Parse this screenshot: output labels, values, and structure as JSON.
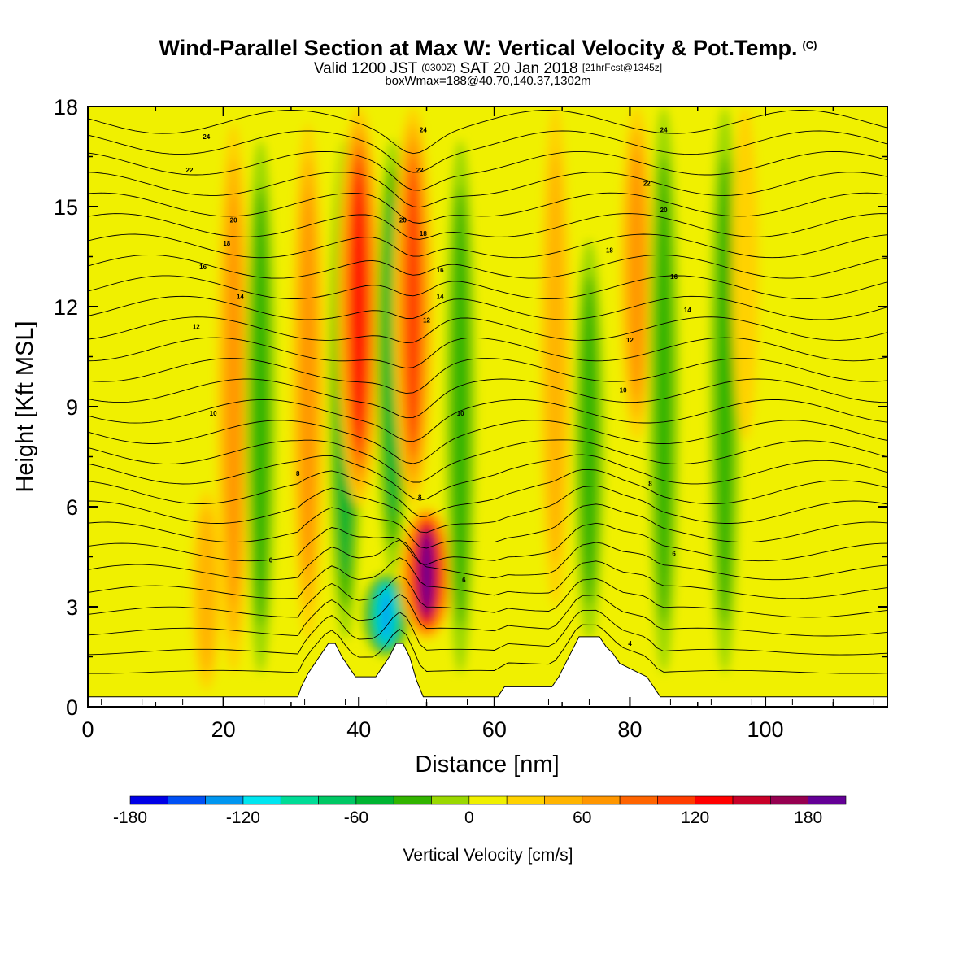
{
  "header": {
    "title": "Wind-Parallel Section at Max W: Vertical Velocity & Pot.Temp.",
    "title_mark": "(C)",
    "subtitle_a": "Valid 1200 JST",
    "subtitle_b": "(0300Z)",
    "subtitle_c": "SAT 20 Jan 2018",
    "subtitle_d": "[21hrFcst@1345z]",
    "subtitle2": "boxWmax=188@40.70,140.37,1302m"
  },
  "chart_data": {
    "type": "heatmap",
    "xlabel": "Distance [nm]",
    "ylabel": "Height [Kft MSL]",
    "xlim": [
      0,
      118
    ],
    "ylim": [
      0,
      18
    ],
    "xticks": [
      0,
      20,
      40,
      60,
      80,
      100
    ],
    "yticks": [
      0,
      3,
      6,
      9,
      12,
      15,
      18
    ],
    "colorbar": {
      "label": "Vertical Velocity [cm/s]",
      "min": -180,
      "max": 200,
      "step": 20,
      "ticks": [
        -180,
        -120,
        -60,
        0,
        60,
        120,
        180
      ],
      "colors": [
        "#0000e6",
        "#0050f5",
        "#0096f0",
        "#00e6f0",
        "#00dc96",
        "#00c864",
        "#00b432",
        "#32b400",
        "#9ad800",
        "#f0f000",
        "#ffd200",
        "#ffb400",
        "#ff9600",
        "#ff6400",
        "#ff3c00",
        "#ff0000",
        "#c80028",
        "#960050",
        "#640096"
      ]
    },
    "velocity_columns": [
      {
        "x": 17.5,
        "peak_cm_s": 40,
        "z_bottom": 0.5,
        "z_top": 6.5
      },
      {
        "x": 21.5,
        "peak_cm_s": 60,
        "z_bottom": 1.0,
        "z_top": 17.5
      },
      {
        "x": 25.5,
        "peak_cm_s": -40,
        "z_bottom": 1.0,
        "z_top": 17.0
      },
      {
        "x": 32.5,
        "peak_cm_s": 60,
        "z_bottom": 2.0,
        "z_top": 17.5
      },
      {
        "x": 38.0,
        "peak_cm_s": -60,
        "z_bottom": 2.0,
        "z_top": 17.0
      },
      {
        "x": 40.0,
        "peak_cm_s": 130,
        "z_bottom": 6.0,
        "z_top": 18.0
      },
      {
        "x": 44.0,
        "peak_cm_s": -140,
        "z_bottom": 1.5,
        "z_top": 4.0
      },
      {
        "x": 45.0,
        "peak_cm_s": -60,
        "z_bottom": 4.0,
        "z_top": 17.0
      },
      {
        "x": 50.0,
        "peak_cm_s": 185,
        "z_bottom": 2.0,
        "z_top": 6.0
      },
      {
        "x": 48.0,
        "peak_cm_s": 110,
        "z_bottom": 6.0,
        "z_top": 18.0
      },
      {
        "x": 55.0,
        "peak_cm_s": -40,
        "z_bottom": 1.0,
        "z_top": 17.0
      },
      {
        "x": 69.0,
        "peak_cm_s": 40,
        "z_bottom": 3.0,
        "z_top": 18.0
      },
      {
        "x": 74.0,
        "peak_cm_s": -40,
        "z_bottom": 2.0,
        "z_top": 14.0
      },
      {
        "x": 81.0,
        "peak_cm_s": 60,
        "z_bottom": 8.0,
        "z_top": 18.0
      },
      {
        "x": 85.0,
        "peak_cm_s": -40,
        "z_bottom": 1.0,
        "z_top": 18.0
      },
      {
        "x": 94.0,
        "peak_cm_s": -40,
        "z_bottom": 1.0,
        "z_top": 18.0
      },
      {
        "x": 97.0,
        "peak_cm_s": 30,
        "z_bottom": 8.0,
        "z_top": 18.0
      }
    ],
    "theta_contour_labels": [
      {
        "x": 17.5,
        "y": 17.1,
        "text": "24"
      },
      {
        "x": 15.0,
        "y": 16.1,
        "text": "22"
      },
      {
        "x": 21.5,
        "y": 14.6,
        "text": "20"
      },
      {
        "x": 20.5,
        "y": 13.9,
        "text": "18"
      },
      {
        "x": 17.0,
        "y": 13.2,
        "text": "16"
      },
      {
        "x": 22.5,
        "y": 12.3,
        "text": "14"
      },
      {
        "x": 16.0,
        "y": 11.4,
        "text": "12"
      },
      {
        "x": 18.5,
        "y": 8.8,
        "text": "10"
      },
      {
        "x": 31.0,
        "y": 7.0,
        "text": "8"
      },
      {
        "x": 27.0,
        "y": 4.4,
        "text": "6"
      },
      {
        "x": 49.5,
        "y": 17.3,
        "text": "24"
      },
      {
        "x": 49.0,
        "y": 16.1,
        "text": "22"
      },
      {
        "x": 46.5,
        "y": 14.6,
        "text": "20"
      },
      {
        "x": 49.5,
        "y": 14.2,
        "text": "18"
      },
      {
        "x": 52.0,
        "y": 13.1,
        "text": "16"
      },
      {
        "x": 52.0,
        "y": 12.3,
        "text": "14"
      },
      {
        "x": 50.0,
        "y": 11.6,
        "text": "12"
      },
      {
        "x": 55.0,
        "y": 8.8,
        "text": "10"
      },
      {
        "x": 49.0,
        "y": 6.3,
        "text": "8"
      },
      {
        "x": 55.5,
        "y": 3.8,
        "text": "6"
      },
      {
        "x": 85.0,
        "y": 17.3,
        "text": "24"
      },
      {
        "x": 82.5,
        "y": 15.7,
        "text": "22"
      },
      {
        "x": 85.0,
        "y": 14.9,
        "text": "20"
      },
      {
        "x": 77.0,
        "y": 13.7,
        "text": "18"
      },
      {
        "x": 86.5,
        "y": 12.9,
        "text": "16"
      },
      {
        "x": 88.5,
        "y": 11.9,
        "text": "14"
      },
      {
        "x": 80.0,
        "y": 11.0,
        "text": "12"
      },
      {
        "x": 79.0,
        "y": 9.5,
        "text": "10"
      },
      {
        "x": 83.0,
        "y": 6.7,
        "text": "8"
      },
      {
        "x": 86.5,
        "y": 4.6,
        "text": "6"
      },
      {
        "x": 80.0,
        "y": 1.9,
        "text": "4"
      }
    ],
    "terrain": [
      [
        0,
        0.3
      ],
      [
        31,
        0.3
      ],
      [
        31.5,
        0.6
      ],
      [
        32.5,
        1.0
      ],
      [
        33.5,
        1.3
      ],
      [
        34.5,
        1.6
      ],
      [
        35.5,
        1.9
      ],
      [
        36.5,
        1.9
      ],
      [
        37.5,
        1.5
      ],
      [
        38.5,
        1.2
      ],
      [
        39.5,
        0.9
      ],
      [
        42.5,
        0.9
      ],
      [
        43.5,
        1.2
      ],
      [
        44.5,
        1.5
      ],
      [
        45.5,
        1.9
      ],
      [
        46.5,
        1.9
      ],
      [
        47.5,
        1.5
      ],
      [
        48.5,
        0.8
      ],
      [
        49.5,
        0.3
      ],
      [
        60.5,
        0.3
      ],
      [
        61.5,
        0.6
      ],
      [
        68.5,
        0.6
      ],
      [
        69.5,
        0.9
      ],
      [
        70.5,
        1.3
      ],
      [
        71.5,
        1.7
      ],
      [
        72.5,
        2.1
      ],
      [
        75.5,
        2.1
      ],
      [
        76.5,
        1.8
      ],
      [
        77.5,
        1.6
      ],
      [
        78.5,
        1.3
      ],
      [
        80.5,
        1.1
      ],
      [
        82.5,
        0.9
      ],
      [
        83.5,
        0.6
      ],
      [
        84.5,
        0.3
      ],
      [
        118,
        0.3
      ]
    ],
    "grid": false,
    "legend": "bottom"
  }
}
